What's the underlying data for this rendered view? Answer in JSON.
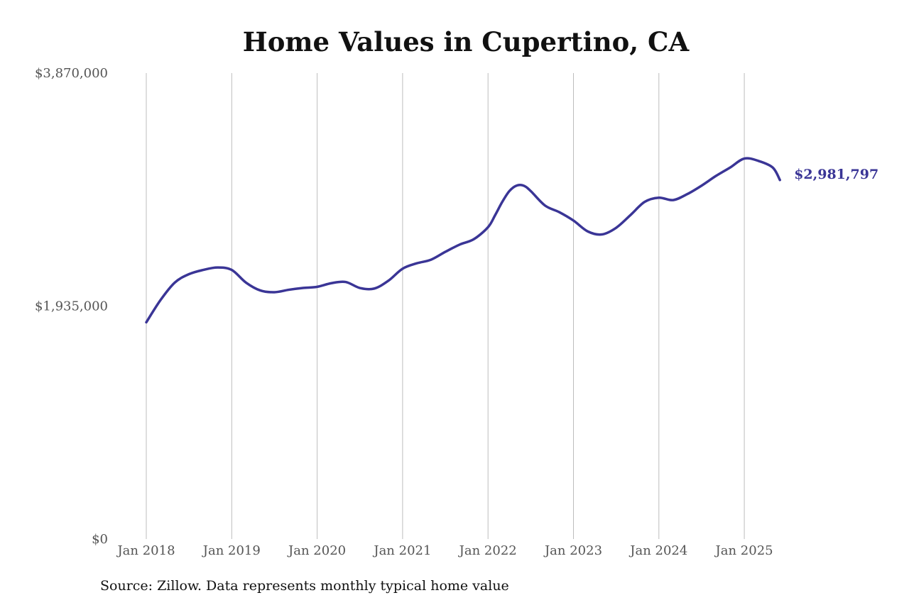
{
  "chart_data": {
    "type": "line",
    "title": "Home Values in Cupertino, CA",
    "xlabel": "",
    "ylabel": "",
    "ylim": [
      0,
      3870000
    ],
    "y_ticks": [
      {
        "value": 0,
        "label": "$0"
      },
      {
        "value": 1935000,
        "label": "$1,935,000"
      },
      {
        "value": 3870000,
        "label": "$3,870,000"
      }
    ],
    "x_ticks": [
      {
        "value": "2018-01",
        "label": "Jan 2018"
      },
      {
        "value": "2019-01",
        "label": "Jan 2019"
      },
      {
        "value": "2020-01",
        "label": "Jan 2020"
      },
      {
        "value": "2021-01",
        "label": "Jan 2021"
      },
      {
        "value": "2022-01",
        "label": "Jan 2022"
      },
      {
        "value": "2023-01",
        "label": "Jan 2023"
      },
      {
        "value": "2024-01",
        "label": "Jan 2024"
      },
      {
        "value": "2025-01",
        "label": "Jan 2025"
      }
    ],
    "xlim": [
      "2018-01",
      "2025-06"
    ],
    "grid": {
      "vertical": true,
      "horizontal": false
    },
    "line_color": "#3a3596",
    "grid_color": "#bdbdbd",
    "end_label": "$2,981,797",
    "series": [
      {
        "x": [
          "2018-01",
          "2018-03",
          "2018-05",
          "2018-07",
          "2018-09",
          "2018-11",
          "2019-01",
          "2019-03",
          "2019-05",
          "2019-07",
          "2019-09",
          "2019-11",
          "2020-01",
          "2020-03",
          "2020-05",
          "2020-07",
          "2020-09",
          "2020-11",
          "2021-01",
          "2021-03",
          "2021-05",
          "2021-07",
          "2021-09",
          "2021-11",
          "2022-01",
          "2022-02",
          "2022-03",
          "2022-04",
          "2022-05",
          "2022-06",
          "2022-07",
          "2022-09",
          "2022-11",
          "2023-01",
          "2023-03",
          "2023-05",
          "2023-07",
          "2023-09",
          "2023-11",
          "2024-01",
          "2024-03",
          "2024-05",
          "2024-07",
          "2024-09",
          "2024-11",
          "2025-01",
          "2025-03",
          "2025-05",
          "2025-06"
        ],
        "values": [
          1800000,
          1985000,
          2130000,
          2200000,
          2235000,
          2255000,
          2235000,
          2130000,
          2065000,
          2050000,
          2070000,
          2085000,
          2095000,
          2125000,
          2135000,
          2085000,
          2080000,
          2145000,
          2245000,
          2290000,
          2320000,
          2385000,
          2445000,
          2490000,
          2590000,
          2690000,
          2800000,
          2890000,
          2935000,
          2935000,
          2890000,
          2770000,
          2715000,
          2645000,
          2555000,
          2530000,
          2585000,
          2690000,
          2800000,
          2835000,
          2815000,
          2865000,
          2935000,
          3015000,
          3085000,
          3160000,
          3140000,
          3085000,
          2981797
        ]
      }
    ]
  },
  "source": "Source: Zillow. Data represents monthly typical home value"
}
